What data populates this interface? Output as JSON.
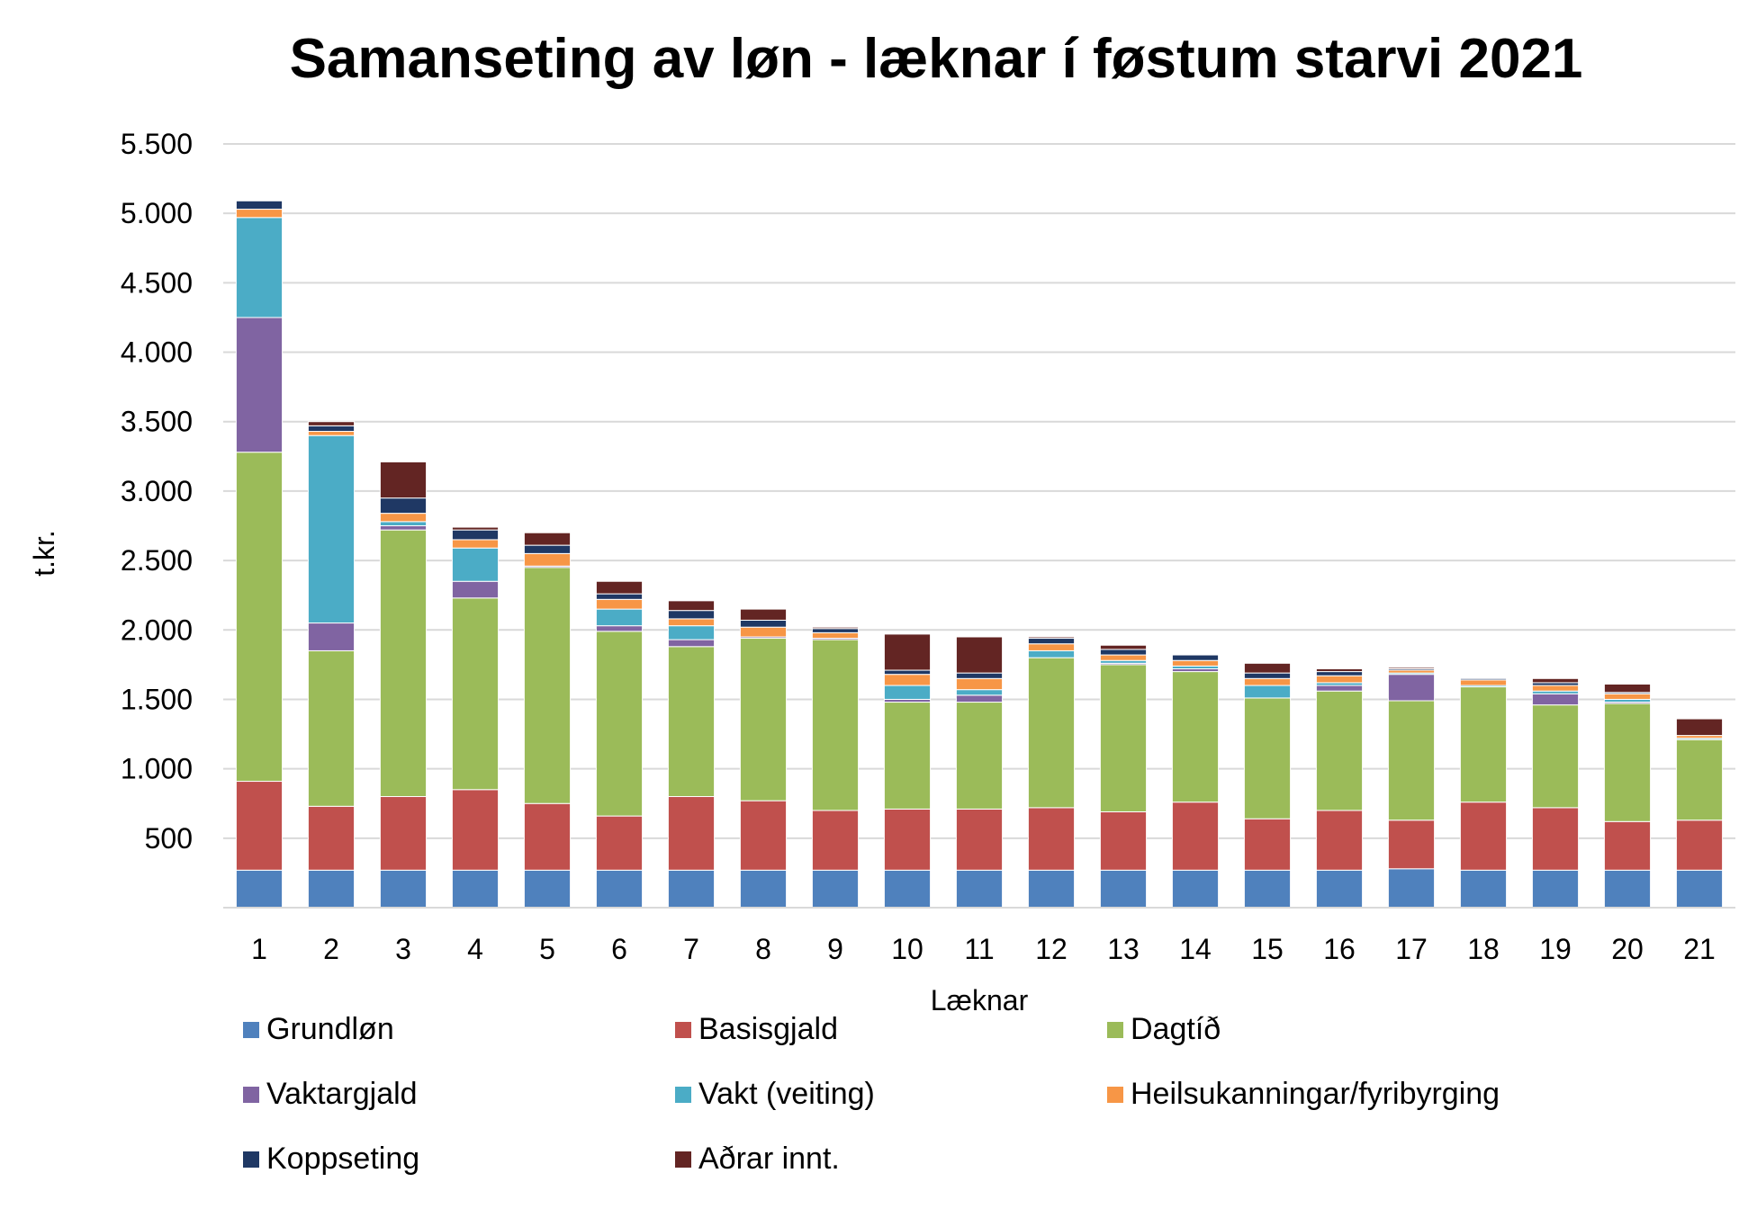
{
  "chart_data": {
    "type": "bar",
    "stacked": true,
    "title": "Samanseting av løn - læknar í føstum starvi 2021",
    "xlabel": "Læknar",
    "ylabel": "t.kr.",
    "ylim": [
      0,
      5500
    ],
    "yticks": [
      500,
      1000,
      1500,
      2000,
      2500,
      3000,
      3500,
      4000,
      4500,
      5000,
      5500
    ],
    "ytick_labels": [
      "500",
      "1.000",
      "1.500",
      "2.000",
      "2.500",
      "3.000",
      "3.500",
      "4.000",
      "4.500",
      "5.000",
      "5.500"
    ],
    "grid": true,
    "legend_position": "bottom",
    "categories": [
      "1",
      "2",
      "3",
      "4",
      "5",
      "6",
      "7",
      "8",
      "9",
      "10",
      "11",
      "12",
      "13",
      "14",
      "15",
      "16",
      "17",
      "18",
      "19",
      "20",
      "21"
    ],
    "series": [
      {
        "name": "Grundløn",
        "color": "#4f81bd",
        "values": [
          270,
          270,
          270,
          270,
          270,
          270,
          270,
          270,
          270,
          270,
          270,
          270,
          270,
          270,
          270,
          270,
          280,
          270,
          270,
          270,
          270
        ]
      },
      {
        "name": "Basisgjald",
        "color": "#c0504d",
        "values": [
          640,
          460,
          530,
          580,
          480,
          390,
          530,
          500,
          430,
          440,
          440,
          450,
          420,
          490,
          370,
          430,
          350,
          490,
          450,
          350,
          360
        ]
      },
      {
        "name": "Dagtíð",
        "color": "#9bbb59",
        "values": [
          2370,
          1120,
          1920,
          1380,
          1700,
          1330,
          1080,
          1170,
          1230,
          770,
          770,
          1080,
          1060,
          940,
          870,
          860,
          860,
          830,
          740,
          850,
          580
        ]
      },
      {
        "name": "Vaktargjald",
        "color": "#8064a2",
        "values": [
          970,
          200,
          30,
          120,
          10,
          40,
          50,
          10,
          10,
          20,
          50,
          0,
          10,
          20,
          0,
          40,
          190,
          0,
          80,
          10,
          0
        ]
      },
      {
        "name": "Vakt (veiting)",
        "color": "#4bacc6",
        "values": [
          720,
          1350,
          30,
          240,
          0,
          120,
          100,
          0,
          0,
          100,
          40,
          50,
          20,
          20,
          90,
          20,
          10,
          10,
          20,
          20,
          10
        ]
      },
      {
        "name": "Heilsukanningar/fyribyrging",
        "color": "#f79646",
        "values": [
          60,
          30,
          60,
          60,
          90,
          70,
          50,
          70,
          40,
          80,
          80,
          50,
          40,
          40,
          50,
          50,
          20,
          40,
          40,
          40,
          20
        ]
      },
      {
        "name": "Koppseting",
        "color": "#1f3864",
        "values": [
          60,
          40,
          110,
          70,
          60,
          40,
          60,
          50,
          30,
          30,
          40,
          40,
          40,
          40,
          40,
          30,
          10,
          10,
          20,
          10,
          0
        ]
      },
      {
        "name": "Aðrar innt.",
        "color": "#632523",
        "values": [
          0,
          30,
          260,
          20,
          90,
          90,
          70,
          80,
          10,
          260,
          260,
          10,
          30,
          0,
          70,
          20,
          10,
          0,
          30,
          60,
          120
        ]
      }
    ]
  }
}
